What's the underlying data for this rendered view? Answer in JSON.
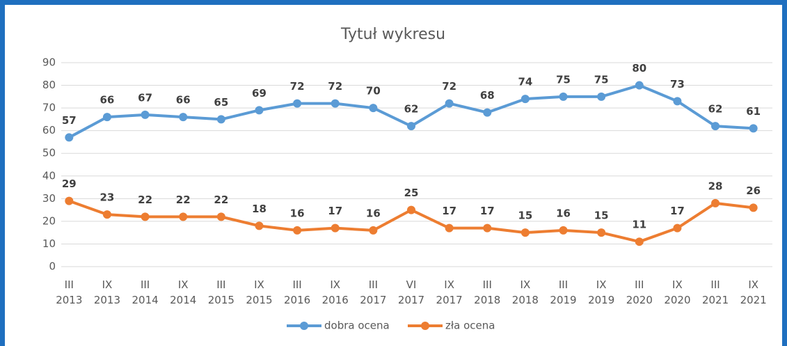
{
  "chart_data": {
    "type": "line",
    "title": "Tytuł wykresu",
    "categories": [
      "III 2013",
      "IX 2013",
      "III 2014",
      "IX 2014",
      "III 2015",
      "IX 2015",
      "III 2016",
      "IX 2016",
      "III 2017",
      "VI 2017",
      "IX 2017",
      "III 2018",
      "IX 2018",
      "III 2019",
      "IX 2019",
      "III 2020",
      "IX 2020",
      "III 2021",
      "IX 2021"
    ],
    "series": [
      {
        "name": "dobra ocena",
        "color": "#5b9bd5",
        "values": [
          57,
          66,
          67,
          66,
          65,
          69,
          72,
          72,
          70,
          62,
          72,
          68,
          74,
          75,
          75,
          80,
          73,
          62,
          61
        ]
      },
      {
        "name": "zła ocena",
        "color": "#ed7d31",
        "values": [
          29,
          23,
          22,
          22,
          22,
          18,
          16,
          17,
          16,
          25,
          17,
          17,
          15,
          16,
          15,
          11,
          17,
          28,
          26
        ]
      }
    ],
    "ylim": [
      0,
      90
    ],
    "yticks": [
      0,
      10,
      20,
      30,
      40,
      50,
      60,
      70,
      80,
      90
    ],
    "grid": true,
    "legend": "bottom"
  }
}
